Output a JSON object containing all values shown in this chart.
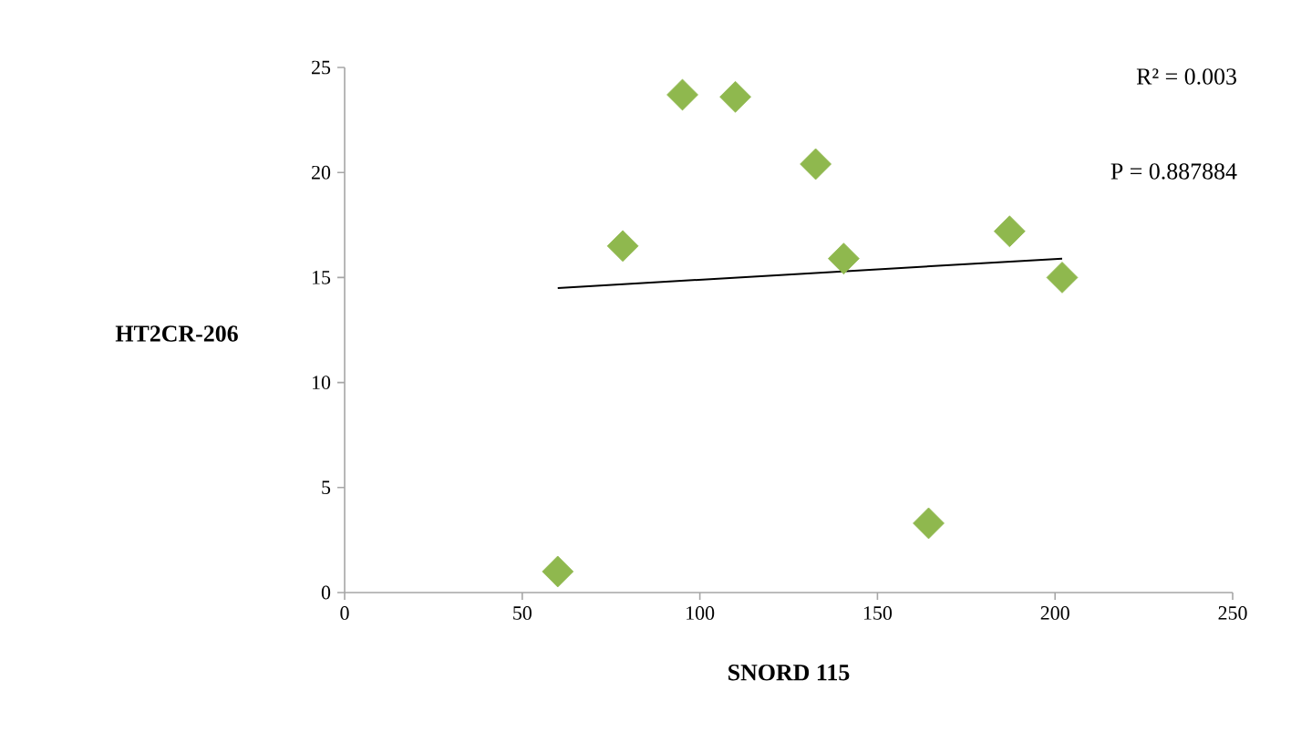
{
  "chart_data": {
    "type": "scatter",
    "xlabel": "SNORD 115",
    "ylabel": "HT2CR-206",
    "annotations": [
      "R² = 0.003",
      "P = 0.887884"
    ],
    "xlim": [
      0,
      250
    ],
    "xticks": [
      0,
      50,
      100,
      150,
      200,
      250
    ],
    "ylim": [
      0,
      25
    ],
    "yticks": [
      0,
      5,
      10,
      15,
      20,
      25
    ],
    "marker": "diamond",
    "series": [
      {
        "color": "#8fb84e",
        "x": [
          60,
          78.3,
          95.1,
          110,
          132.6,
          140.5,
          164.4,
          187.2,
          202
        ],
        "values": [
          1,
          16.5,
          23.7,
          23.6,
          20.4,
          15.9,
          3.3,
          17.2,
          15.0
        ]
      },
      {
        "type": "line",
        "color": "#000000",
        "marker": "none",
        "x": [
          60,
          202
        ],
        "values": [
          14.5,
          15.9
        ]
      }
    ]
  }
}
